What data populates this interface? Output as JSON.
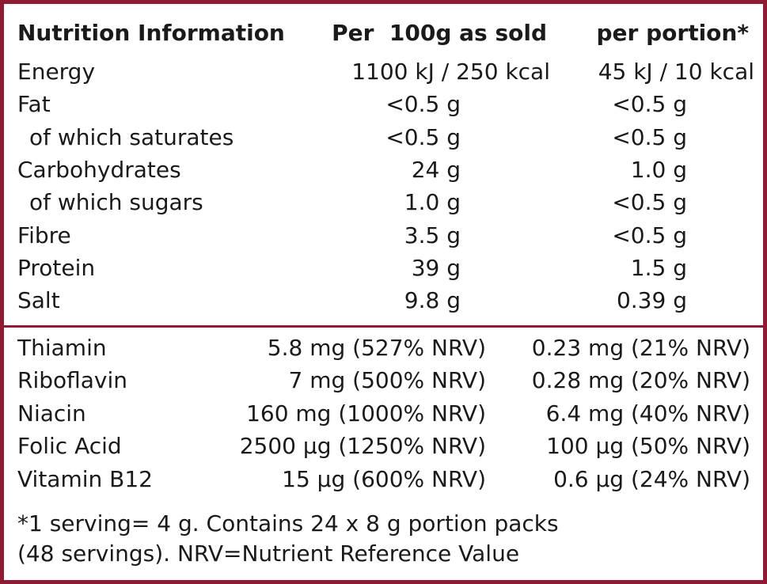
{
  "header": {
    "title": "Nutrition Information",
    "per_100g": "Per  100g as sold",
    "per_portion": "per portion*"
  },
  "nutrients": [
    {
      "label": "Energy",
      "per_100g": "1100 kJ / 250 kcal",
      "per_portion": "45 kJ / 10 kcal"
    },
    {
      "label": "Fat",
      "per_100g": "<0.5 g",
      "per_portion": "<0.5 g",
      "sub": {
        "label": "of which saturates",
        "per_100g": "<0.5 g",
        "per_portion": "<0.5 g"
      }
    },
    {
      "label": "Carbohydrates",
      "per_100g": "24 g",
      "per_portion": "1.0 g",
      "sub": {
        "label": "of which sugars",
        "per_100g": "1.0 g",
        "per_portion": "<0.5 g"
      }
    },
    {
      "label": "Fibre",
      "per_100g": "3.5 g",
      "per_portion": "<0.5 g"
    },
    {
      "label": "Protein",
      "per_100g": "39 g",
      "per_portion": "1.5 g"
    },
    {
      "label": "Salt",
      "per_100g": "9.8 g",
      "per_portion": "0.39 g"
    }
  ],
  "vitamins": [
    {
      "label": "Thiamin",
      "per_100g": "5.8 mg (527% NRV)",
      "per_portion": "0.23 mg (21% NRV)"
    },
    {
      "label": "Riboflavin",
      "per_100g": "7 mg (500% NRV)",
      "per_portion": "0.28 mg (20% NRV)"
    },
    {
      "label": "Niacin",
      "per_100g": "160 mg (1000% NRV)",
      "per_portion": "6.4 mg (40% NRV)"
    },
    {
      "label": "Folic Acid",
      "per_100g": "2500 µg (1250% NRV)",
      "per_portion": "100 µg (50% NRV)"
    },
    {
      "label": "Vitamin B12",
      "per_100g": "15 µg (600% NRV)",
      "per_portion": "0.6 µg (24% NRV)"
    }
  ],
  "footnote": [
    "*1 serving= 4 g. Contains 24 x 8 g portion packs",
    "(48 servings). NRV=Nutrient Reference Value"
  ]
}
